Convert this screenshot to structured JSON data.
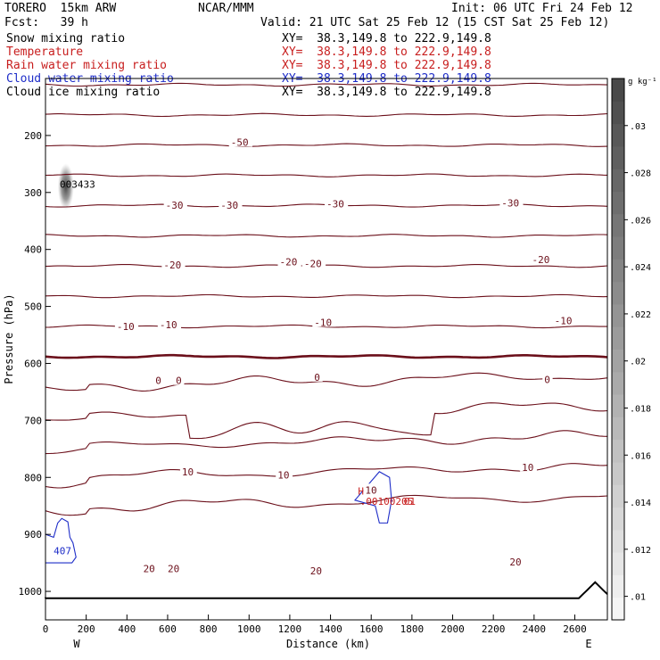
{
  "header": {
    "model": "TORERO  15km ARW",
    "org": "NCAR/MMM",
    "init": "Init: 06 UTC Fri 24 Feb 12",
    "fcst": "Fcst:   39 h",
    "valid": "Valid: 21 UTC Sat 25 Feb 12 (15 CST Sat 25 Feb 12)"
  },
  "fields": [
    {
      "name": "Snow mixing ratio",
      "xy": "XY=  38.3,149.8 to 222.9,149.8",
      "color": "#000000"
    },
    {
      "name": "Temperature",
      "xy": "XY=  38.3,149.8 to 222.9,149.8",
      "color": "#c81e1e"
    },
    {
      "name": "Rain water mixing ratio",
      "xy": "XY=  38.3,149.8 to 222.9,149.8",
      "color": "#c81e1e"
    },
    {
      "name": "Cloud water mixing ratio",
      "xy": "XY=  38.3,149.8 to 222.9,149.8",
      "color": "#1e2dc8"
    },
    {
      "name": "Cloud ice mixing ratio",
      "xy": "XY=  38.3,149.8 to 222.9,149.8",
      "color": "#000000"
    }
  ],
  "chart_data": {
    "type": "contour",
    "ylabel": "Pressure (hPa)",
    "xlabel": "Distance (km)",
    "left_end": "W",
    "right_end": "E",
    "xlim": [
      0,
      2760
    ],
    "ylim": [
      100,
      1050
    ],
    "x_ticks": [
      0,
      200,
      400,
      600,
      800,
      1000,
      1200,
      1400,
      1600,
      1800,
      2000,
      2200,
      2400,
      2600
    ],
    "y_ticks": [
      200,
      300,
      400,
      500,
      600,
      700,
      800,
      900,
      1000
    ],
    "isotherm_levels": [
      -70,
      -65,
      -60,
      -55,
      -50,
      -45,
      -40,
      -35,
      -30,
      -25,
      -20,
      -15,
      -10,
      -5,
      0,
      5,
      10,
      15,
      20,
      25
    ],
    "temperature_labels": [
      {
        "text": "-50",
        "x": 910,
        "p": 212
      },
      {
        "text": "-30",
        "x": 590,
        "p": 322
      },
      {
        "text": "-30",
        "x": 860,
        "p": 322
      },
      {
        "text": "-30",
        "x": 1380,
        "p": 320
      },
      {
        "text": "-30",
        "x": 2240,
        "p": 318
      },
      {
        "text": "-20",
        "x": 580,
        "p": 427
      },
      {
        "text": "-20",
        "x": 1150,
        "p": 422
      },
      {
        "text": "-20",
        "x": 1270,
        "p": 425
      },
      {
        "text": "-20",
        "x": 2390,
        "p": 418
      },
      {
        "text": "-10",
        "x": 350,
        "p": 535
      },
      {
        "text": "-10",
        "x": 560,
        "p": 532
      },
      {
        "text": "-10",
        "x": 1320,
        "p": 528
      },
      {
        "text": "-10",
        "x": 2500,
        "p": 525
      },
      {
        "text": "0",
        "x": 540,
        "p": 630
      },
      {
        "text": "0",
        "x": 640,
        "p": 630
      },
      {
        "text": "0",
        "x": 1320,
        "p": 624
      },
      {
        "text": "0",
        "x": 2450,
        "p": 628
      },
      {
        "text": "10",
        "x": 670,
        "p": 790
      },
      {
        "text": "10",
        "x": 1140,
        "p": 796
      },
      {
        "text": "10",
        "x": 1570,
        "p": 822
      },
      {
        "text": "10",
        "x": 2340,
        "p": 782
      },
      {
        "text": "20",
        "x": 480,
        "p": 960
      },
      {
        "text": "20",
        "x": 600,
        "p": 960
      },
      {
        "text": "20",
        "x": 1300,
        "p": 964
      },
      {
        "text": "20",
        "x": 2280,
        "p": 948
      }
    ],
    "annotations": [
      {
        "text": "003433",
        "x": 70,
        "p": 292,
        "color": "#000000"
      },
      {
        "text": "407",
        "x": 40,
        "p": 935,
        "color": "#1e2dc8"
      },
      {
        "text": "H",
        "x": 1535,
        "p": 830,
        "color": "#c81e1e"
      },
      {
        "text": ".00100205",
        "x": 1545,
        "p": 848,
        "color": "#c81e1e"
      },
      {
        "text": "01",
        "x": 1760,
        "p": 848,
        "color": "#c81e1e"
      }
    ],
    "colorbar": {
      "unit": "g kg⁻¹",
      "ticks": [
        ".01",
        ".012",
        ".014",
        ".016",
        ".018",
        ".02",
        ".022",
        ".024",
        ".026",
        ".028",
        ".03"
      ],
      "min": 0.009,
      "max": 0.032
    },
    "snow_max": {
      "x": 100,
      "p": 290,
      "value": 0.032
    }
  }
}
